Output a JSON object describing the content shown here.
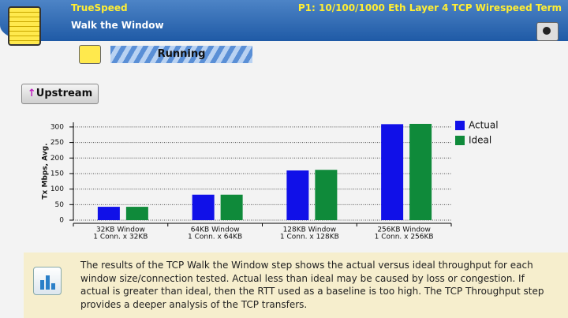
{
  "header": {
    "app": "TrueSpeed",
    "port": "P1: 10/100/1000 Eth Layer 4 TCP Wirespeed Term",
    "step": "Walk the Window"
  },
  "status": "Running",
  "direction_button": "Upstream",
  "chart_data": {
    "type": "bar",
    "ylabel": "Tx Mbps, Avg.",
    "categories": [
      [
        "32KB Window",
        "1 Conn. x 32KB"
      ],
      [
        "64KB Window",
        "1 Conn. x 64KB"
      ],
      [
        "128KB Window",
        "1 Conn. x 128KB"
      ],
      [
        "256KB Window",
        "1 Conn. x 256KB"
      ]
    ],
    "series": [
      {
        "name": "Actual",
        "color": "#1010e8",
        "values": [
          43,
          82,
          160,
          309
        ]
      },
      {
        "name": "Ideal",
        "color": "#0f8a3a",
        "values": [
          43,
          82,
          162,
          310
        ]
      }
    ],
    "ylim": [
      0,
      315
    ],
    "yticks": [
      0,
      50,
      100,
      150,
      200,
      250,
      300
    ],
    "grid": true,
    "legend": "right"
  },
  "info": "The results of the TCP Walk the Window step shows the actual versus ideal throughput for each window size/connection tested. Actual less than ideal may be caused by loss or congestion. If actual is greater than ideal, then the RTT used as a baseline is too high. The TCP Throughput step provides a deeper analysis of the TCP transfers."
}
